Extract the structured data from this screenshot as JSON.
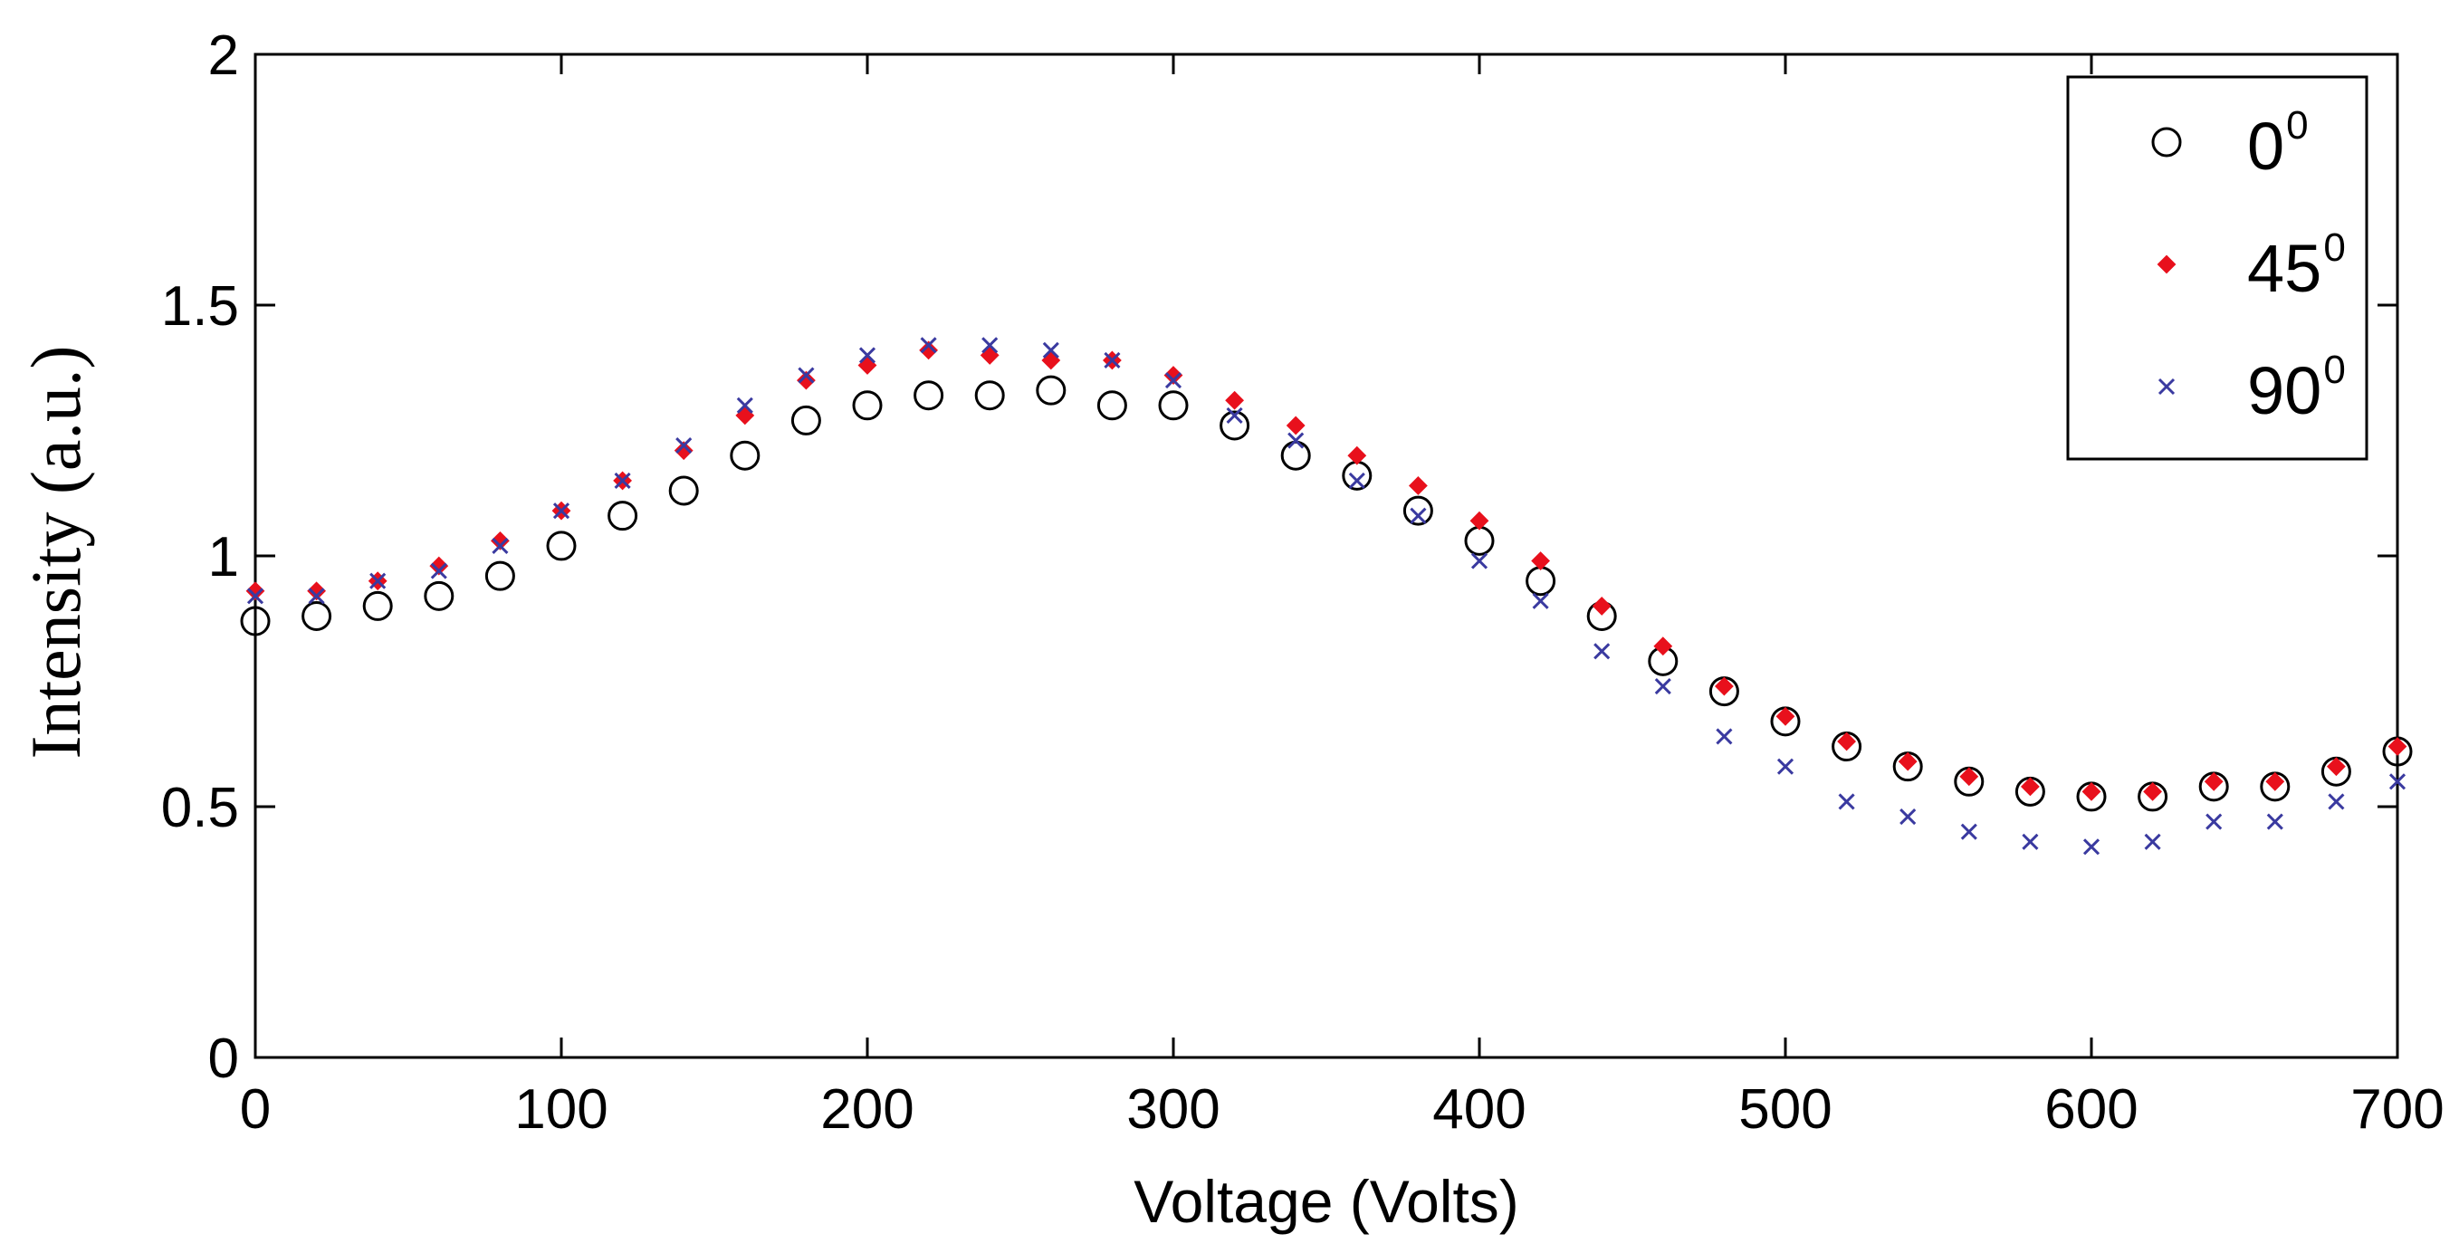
{
  "chart_data": {
    "type": "scatter",
    "title": "",
    "xlabel": "Voltage (Volts)",
    "ylabel": "Intensity (a.u.)",
    "xlim": [
      0,
      700
    ],
    "ylim": [
      0,
      2
    ],
    "xticks": [
      0,
      100,
      200,
      300,
      400,
      500,
      600,
      700
    ],
    "xtick_labels": [
      "0",
      "100",
      "200",
      "300",
      "400",
      "500",
      "600",
      "700"
    ],
    "yticks": [
      0,
      0.5,
      1,
      1.5,
      2
    ],
    "ytick_labels": [
      "0",
      "0.5",
      "1",
      "1.5",
      "2"
    ],
    "grid": false,
    "legend_position": "top-right",
    "x": [
      0,
      20,
      40,
      60,
      80,
      100,
      120,
      140,
      160,
      180,
      200,
      220,
      240,
      260,
      280,
      300,
      320,
      340,
      360,
      380,
      400,
      420,
      440,
      460,
      480,
      500,
      520,
      540,
      560,
      580,
      600,
      620,
      640,
      660,
      680,
      700
    ],
    "series": [
      {
        "name": "0",
        "superscript": "0",
        "marker": "circle",
        "color": "#000000",
        "values": [
          0.87,
          0.88,
          0.9,
          0.92,
          0.96,
          1.02,
          1.08,
          1.13,
          1.2,
          1.27,
          1.3,
          1.32,
          1.32,
          1.33,
          1.3,
          1.3,
          1.26,
          1.2,
          1.16,
          1.09,
          1.03,
          0.95,
          0.88,
          0.79,
          0.73,
          0.67,
          0.62,
          0.58,
          0.55,
          0.53,
          0.52,
          0.52,
          0.54,
          0.54,
          0.57,
          0.61
        ]
      },
      {
        "name": "45",
        "superscript": "0",
        "marker": "diamond",
        "color": "#e8101c",
        "values": [
          0.93,
          0.93,
          0.95,
          0.98,
          1.03,
          1.09,
          1.15,
          1.21,
          1.28,
          1.35,
          1.38,
          1.41,
          1.4,
          1.39,
          1.39,
          1.36,
          1.31,
          1.26,
          1.2,
          1.14,
          1.07,
          0.99,
          0.9,
          0.82,
          0.74,
          0.68,
          0.63,
          0.59,
          0.56,
          0.54,
          0.53,
          0.53,
          0.55,
          0.55,
          0.58,
          0.62
        ]
      },
      {
        "name": "90",
        "superscript": "0",
        "marker": "x",
        "color": "#3a3aa0",
        "values": [
          0.92,
          0.92,
          0.95,
          0.97,
          1.02,
          1.09,
          1.15,
          1.22,
          1.3,
          1.36,
          1.4,
          1.42,
          1.42,
          1.41,
          1.39,
          1.35,
          1.28,
          1.23,
          1.15,
          1.08,
          0.99,
          0.91,
          0.81,
          0.74,
          0.64,
          0.58,
          0.51,
          0.48,
          0.45,
          0.43,
          0.42,
          0.43,
          0.47,
          0.47,
          0.51,
          0.55
        ]
      }
    ]
  }
}
